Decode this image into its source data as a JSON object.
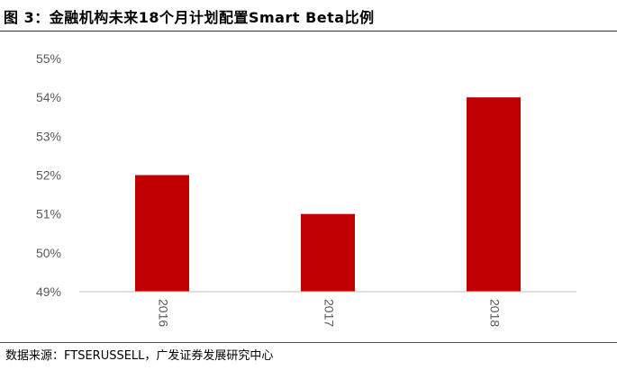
{
  "figure": {
    "title": "图 3：金融机构未来18个月计划配置Smart Beta比例",
    "source": "数据来源：FTSERUSSELL，广发证券发展研究中心"
  },
  "colors": {
    "bar": "#c00000",
    "axis": "#bfbfbf",
    "tick_text": "#595959"
  },
  "chart_data": {
    "type": "bar",
    "title": "",
    "xlabel": "",
    "ylabel": "",
    "categories": [
      "2016",
      "2017",
      "2018"
    ],
    "values": [
      52,
      51,
      54
    ],
    "ylim": [
      49,
      55
    ],
    "yticks": [
      49,
      50,
      51,
      52,
      53,
      54,
      55
    ],
    "y_tick_format": "percent",
    "grid": false,
    "legend": "none"
  }
}
